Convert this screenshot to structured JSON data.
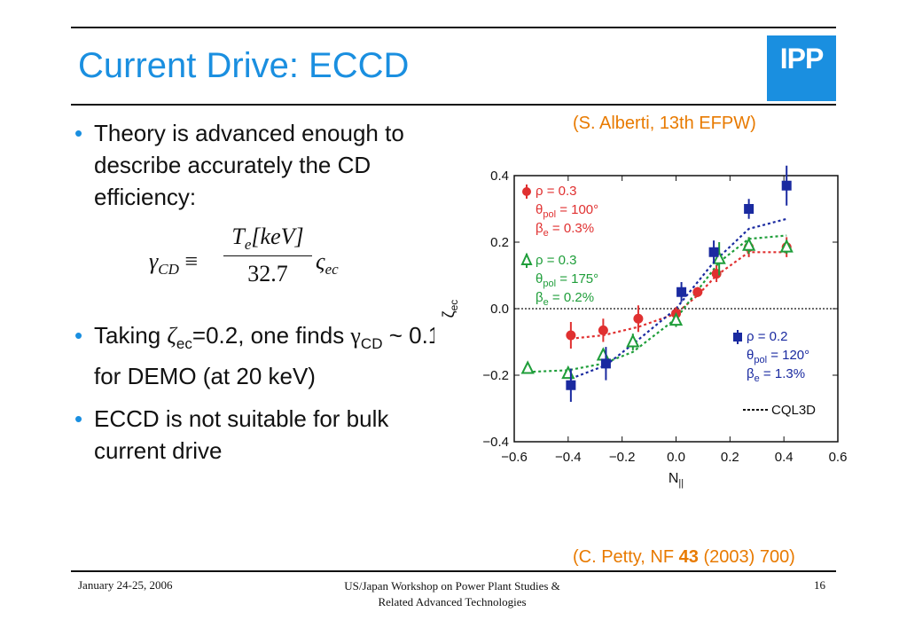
{
  "slide": {
    "title": "Current Drive: ECCD",
    "logo_text": "IPP",
    "bullets": [
      {
        "text": "Theory is advanced enough to describe accurately the CD efficiency:"
      },
      {
        "pre": "Taking ",
        "zeta": "ζ",
        "zeta_sub": "ec",
        "post1": "=0.2, one finds ",
        "gamma": "γ",
        "gamma_sub": "CD",
        "post2": " ~ 0.1 for DEMO (at 20 keV)"
      },
      {
        "text": "ECCD is not suitable for bulk current drive"
      }
    ],
    "formula": {
      "lhs": "γ",
      "lhs_sub": "CD",
      "equiv": "≡",
      "num_T": "T",
      "num_sub": "e",
      "num_rest": "[keV]",
      "den": "32.7",
      "rhs": "ς",
      "rhs_sub": "ec"
    },
    "citation_top": "(S. Alberti, 13th EFPW)",
    "citation_bottom_pre": "(C. Petty, NF ",
    "citation_bottom_bold": "43",
    "citation_bottom_post": " (2003) 700)",
    "footer": {
      "date": "January 24-25, 2006",
      "center_line1": "US/Japan Workshop on Power Plant Studies &",
      "center_line2": "Related Advanced Technologies",
      "page": "16"
    }
  },
  "chart_data": {
    "type": "scatter",
    "xlabel": "N||",
    "ylabel": "ζec",
    "xlim": [
      -0.6,
      0.6
    ],
    "ylim": [
      -0.4,
      0.4
    ],
    "xticks": [
      "-0.6",
      "-0.4",
      "-0.2",
      "0.0",
      "0.2",
      "0.4",
      "0.6"
    ],
    "yticks": [
      "0.4",
      "0.2",
      "0.0",
      "-0.2",
      "-0.4"
    ],
    "zero_line": true,
    "series": [
      {
        "color": "#e03030",
        "marker": "circle",
        "legend": [
          "ρ = 0.3",
          "θpol = 100°",
          "βe = 0.3%"
        ],
        "points": [
          {
            "x": -0.39,
            "y": -0.08,
            "err": 0.04
          },
          {
            "x": -0.27,
            "y": -0.065,
            "err": 0.035
          },
          {
            "x": -0.14,
            "y": -0.03,
            "err": 0.04
          },
          {
            "x": 0.0,
            "y": -0.015,
            "err": 0.02
          },
          {
            "x": 0.08,
            "y": 0.05,
            "err": 0.015
          },
          {
            "x": 0.15,
            "y": 0.105,
            "err": 0.025
          },
          {
            "x": 0.27,
            "y": 0.185,
            "err": 0.03
          },
          {
            "x": 0.41,
            "y": 0.185,
            "err": 0.03
          }
        ],
        "fit": [
          [
            -0.39,
            -0.09
          ],
          [
            -0.27,
            -0.08
          ],
          [
            -0.14,
            -0.055
          ],
          [
            0.0,
            -0.015
          ],
          [
            0.08,
            0.04
          ],
          [
            0.15,
            0.1
          ],
          [
            0.27,
            0.17
          ],
          [
            0.41,
            0.17
          ]
        ]
      },
      {
        "color": "#1f9e3a",
        "marker": "triangle",
        "legend": [
          "ρ = 0.3",
          "θpol = 175°",
          "βe = 0.2%"
        ],
        "points": [
          {
            "x": -0.55,
            "y": -0.18,
            "err": 0.01
          },
          {
            "x": -0.4,
            "y": -0.195,
            "err": 0.015
          },
          {
            "x": -0.27,
            "y": -0.14,
            "err": 0.02
          },
          {
            "x": -0.16,
            "y": -0.1,
            "err": 0.025
          },
          {
            "x": 0.0,
            "y": -0.035,
            "err": 0.02
          },
          {
            "x": 0.16,
            "y": 0.15,
            "err": 0.05
          },
          {
            "x": 0.27,
            "y": 0.19,
            "err": 0.025
          },
          {
            "x": 0.41,
            "y": 0.185,
            "err": 0.02
          }
        ],
        "fit": [
          [
            -0.55,
            -0.19
          ],
          [
            -0.4,
            -0.185
          ],
          [
            -0.27,
            -0.165
          ],
          [
            -0.16,
            -0.13
          ],
          [
            0.0,
            -0.03
          ],
          [
            0.16,
            0.14
          ],
          [
            0.27,
            0.21
          ],
          [
            0.41,
            0.22
          ]
        ]
      },
      {
        "color": "#1a2aa0",
        "marker": "square",
        "legend": [
          "ρ = 0.2",
          "θpol = 120°",
          "βe = 1.3%"
        ],
        "points": [
          {
            "x": -0.39,
            "y": -0.23,
            "err": 0.05
          },
          {
            "x": -0.26,
            "y": -0.165,
            "err": 0.05
          },
          {
            "x": 0.02,
            "y": 0.05,
            "err": 0.03
          },
          {
            "x": 0.14,
            "y": 0.17,
            "err": 0.035
          },
          {
            "x": 0.27,
            "y": 0.3,
            "err": 0.03
          },
          {
            "x": 0.41,
            "y": 0.37,
            "err": 0.06
          }
        ],
        "fit": [
          [
            -0.39,
            -0.21
          ],
          [
            -0.26,
            -0.17
          ],
          [
            -0.15,
            -0.1
          ],
          [
            0.0,
            0.0
          ],
          [
            0.14,
            0.14
          ],
          [
            0.27,
            0.24
          ],
          [
            0.41,
            0.27
          ]
        ]
      }
    ],
    "fit_legend": "CQL3D"
  }
}
